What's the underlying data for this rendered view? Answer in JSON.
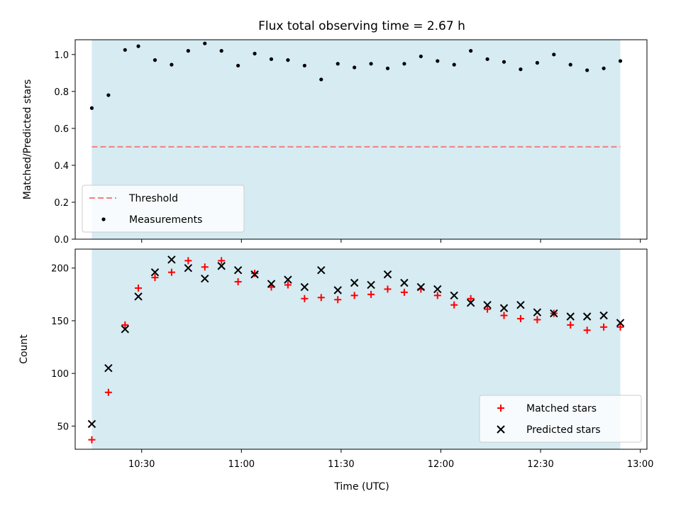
{
  "chart_data": {
    "title": "Flux total observing time = 2.67 h",
    "xlabel": "Time (UTC)",
    "x_ticks": [
      "10:30",
      "11:00",
      "11:30",
      "12:00",
      "12:30",
      "13:00"
    ],
    "x_range": [
      "10:10",
      "13:02"
    ],
    "shaded_span": [
      "10:15",
      "12:54"
    ],
    "shade_color": "#add8e6",
    "times": [
      "10:15",
      "10:20",
      "10:25",
      "10:29",
      "10:34",
      "10:39",
      "10:44",
      "10:49",
      "10:54",
      "10:59",
      "11:04",
      "11:09",
      "11:14",
      "11:19",
      "11:24",
      "11:29",
      "11:34",
      "11:39",
      "11:44",
      "11:49",
      "11:54",
      "11:59",
      "12:04",
      "12:09",
      "12:14",
      "12:19",
      "12:24",
      "12:29",
      "12:34",
      "12:39",
      "12:44",
      "12:49",
      "12:54"
    ],
    "panels": [
      {
        "type": "scatter",
        "ylabel": "Matched/Predicted stars",
        "ylim": [
          0,
          1.08
        ],
        "y_ticks": [
          0.0,
          0.2,
          0.4,
          0.6,
          0.8,
          1.0
        ],
        "threshold": 0.5,
        "legend_position": "lower-left",
        "series": [
          {
            "name": "Threshold",
            "kind": "dashed-line",
            "color": "#f08080"
          },
          {
            "name": "Measurements",
            "kind": "dot",
            "color": "#000000",
            "values": [
              0.71,
              0.78,
              1.025,
              1.045,
              0.97,
              0.945,
              1.02,
              1.06,
              1.02,
              0.94,
              1.005,
              0.975,
              0.97,
              0.94,
              0.865,
              0.95,
              0.93,
              0.95,
              0.925,
              0.95,
              0.99,
              0.965,
              0.945,
              1.02,
              0.975,
              0.96,
              0.92,
              0.955,
              1.0,
              0.945,
              0.915,
              0.925,
              0.965
            ]
          }
        ]
      },
      {
        "type": "scatter",
        "ylabel": "Count",
        "ylim": [
          28,
          218
        ],
        "y_ticks": [
          50,
          100,
          150,
          200
        ],
        "legend_position": "lower-right",
        "series": [
          {
            "name": "Matched stars",
            "kind": "plus",
            "color": "#ff0000",
            "values": [
              37,
              82,
              146,
              181,
              191,
              196,
              207,
              201,
              207,
              187,
              195,
              182,
              184,
              171,
              172,
              170,
              174,
              175,
              180,
              177,
              180,
              174,
              165,
              171,
              161,
              155,
              152,
              151,
              157,
              146,
              141,
              144,
              144
            ]
          },
          {
            "name": "Predicted stars",
            "kind": "x",
            "color": "#000000",
            "values": [
              52,
              105,
              142,
              173,
              196,
              208,
              200,
              190,
              202,
              198,
              194,
              185,
              189,
              182,
              198,
              179,
              186,
              184,
              194,
              186,
              182,
              180,
              174,
              167,
              165,
              162,
              165,
              158,
              157,
              154,
              154,
              155,
              148
            ]
          }
        ]
      }
    ]
  }
}
